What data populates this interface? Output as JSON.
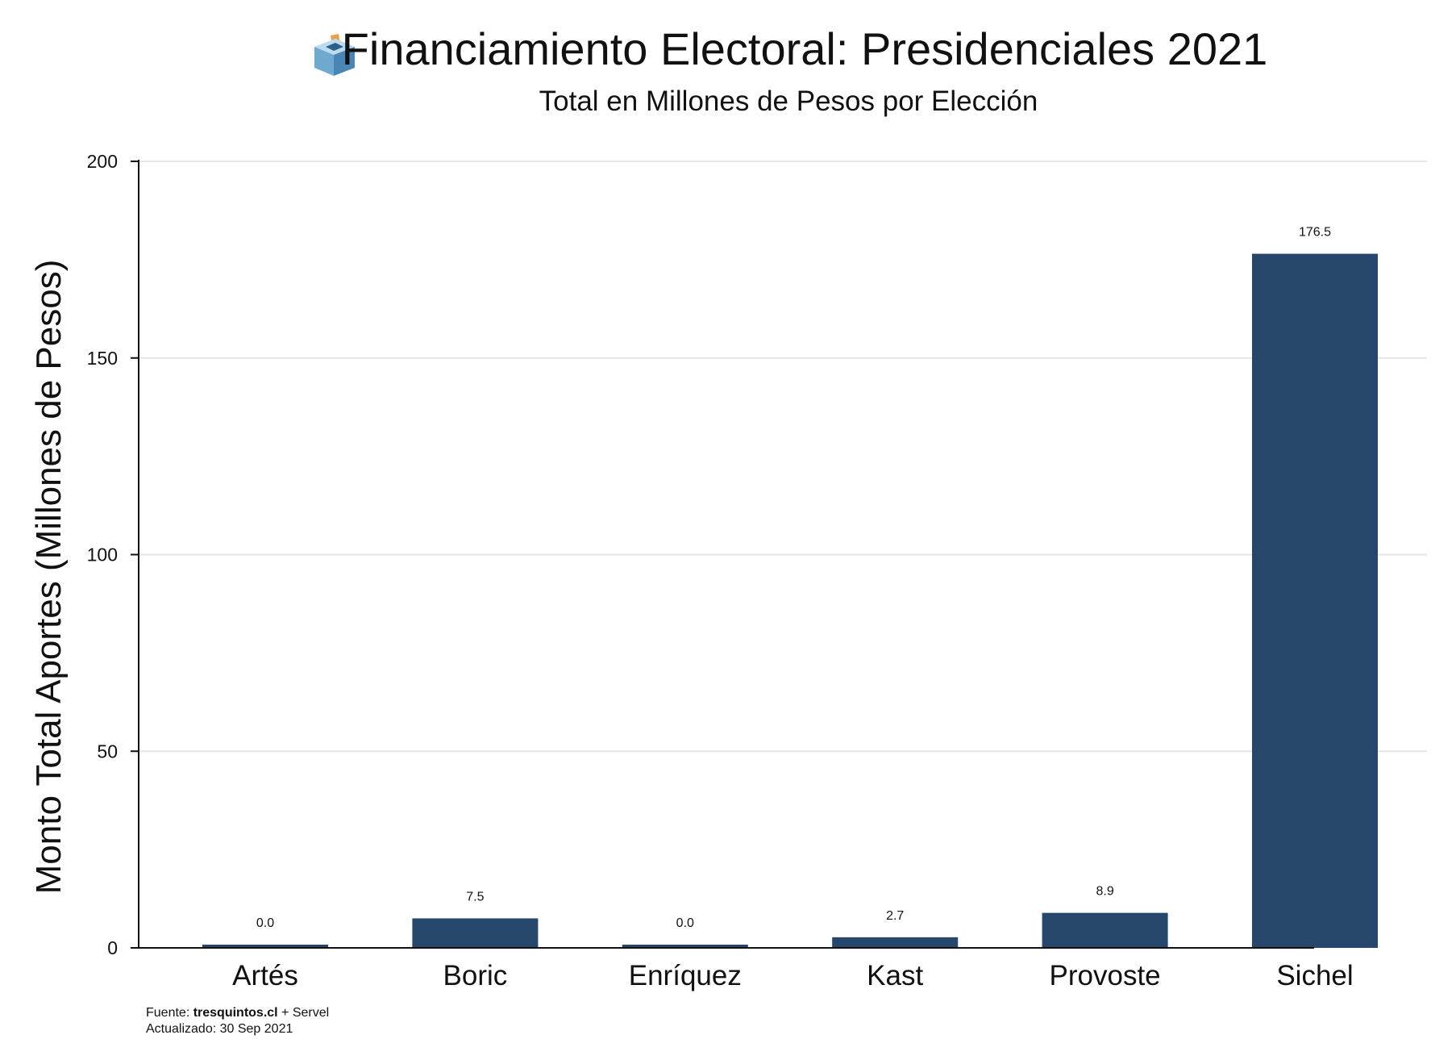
{
  "chart_data": {
    "type": "bar",
    "title": "Financiamiento Electoral: Presidenciales 2021",
    "title_icon": "ballot-box-icon",
    "subtitle": "Total en Millones de Pesos por Elección",
    "xlabel": "",
    "ylabel": "Monto Total Aportes (Millones de Pesos)",
    "ylim": [
      0,
      200
    ],
    "yticks": [
      0,
      50,
      100,
      150,
      200
    ],
    "grid": true,
    "legend": "none",
    "categories": [
      "Artés",
      "Boric",
      "Enríquez",
      "Kast",
      "Provoste",
      "Sichel"
    ],
    "values": [
      0.0,
      7.5,
      0.0,
      2.7,
      8.9,
      176.5
    ],
    "data_labels": [
      "0.0",
      "7.5",
      "0.0",
      "2.7",
      "8.9",
      "176.5"
    ],
    "colors": {
      "bar": "#26466b",
      "gridline": "#e6e6e6",
      "axis": "#111111"
    }
  },
  "footer": {
    "source_prefix": "Fuente: ",
    "source_site": "tresquintos.cl",
    "source_suffix": " + Servel",
    "updated": "Actualizado: 30 Sep 2021"
  }
}
